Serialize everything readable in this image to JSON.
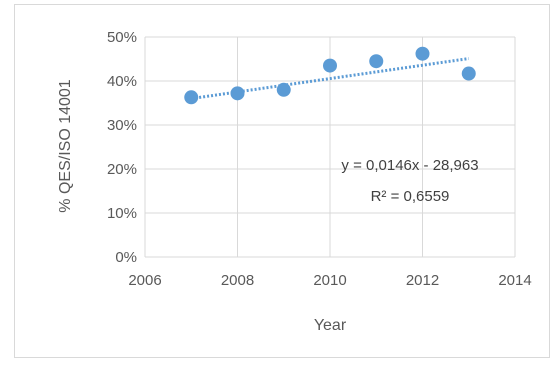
{
  "chart_data": {
    "type": "scatter",
    "xlabel": "Year",
    "ylabel": "% QES/ISO 14001",
    "xlim": [
      2006,
      2014
    ],
    "ylim": [
      0,
      0.5
    ],
    "x_ticks": [
      2006,
      2008,
      2010,
      2012,
      2014
    ],
    "x_tick_labels": [
      "2006",
      "2008",
      "2010",
      "2012",
      "2014"
    ],
    "y_ticks": [
      0,
      0.1,
      0.2,
      0.3,
      0.4,
      0.5
    ],
    "y_tick_labels": [
      "0%",
      "10%",
      "20%",
      "30%",
      "40%",
      "50%"
    ],
    "grid": true,
    "series": [
      {
        "x": [
          2007,
          2008,
          2009,
          2010,
          2011,
          2012,
          2013
        ],
        "y": [
          0.363,
          0.372,
          0.38,
          0.435,
          0.445,
          0.462,
          0.417
        ],
        "color": "#5b9bd5"
      }
    ],
    "trendline": {
      "type": "linear",
      "x": [
        2007,
        2013
      ],
      "y": [
        0.36,
        0.451
      ],
      "style": "dotted",
      "color": "#5b9bd5",
      "equation": "y = 0,0146x - 28,963",
      "r_squared": "R² = 0,6559"
    }
  }
}
